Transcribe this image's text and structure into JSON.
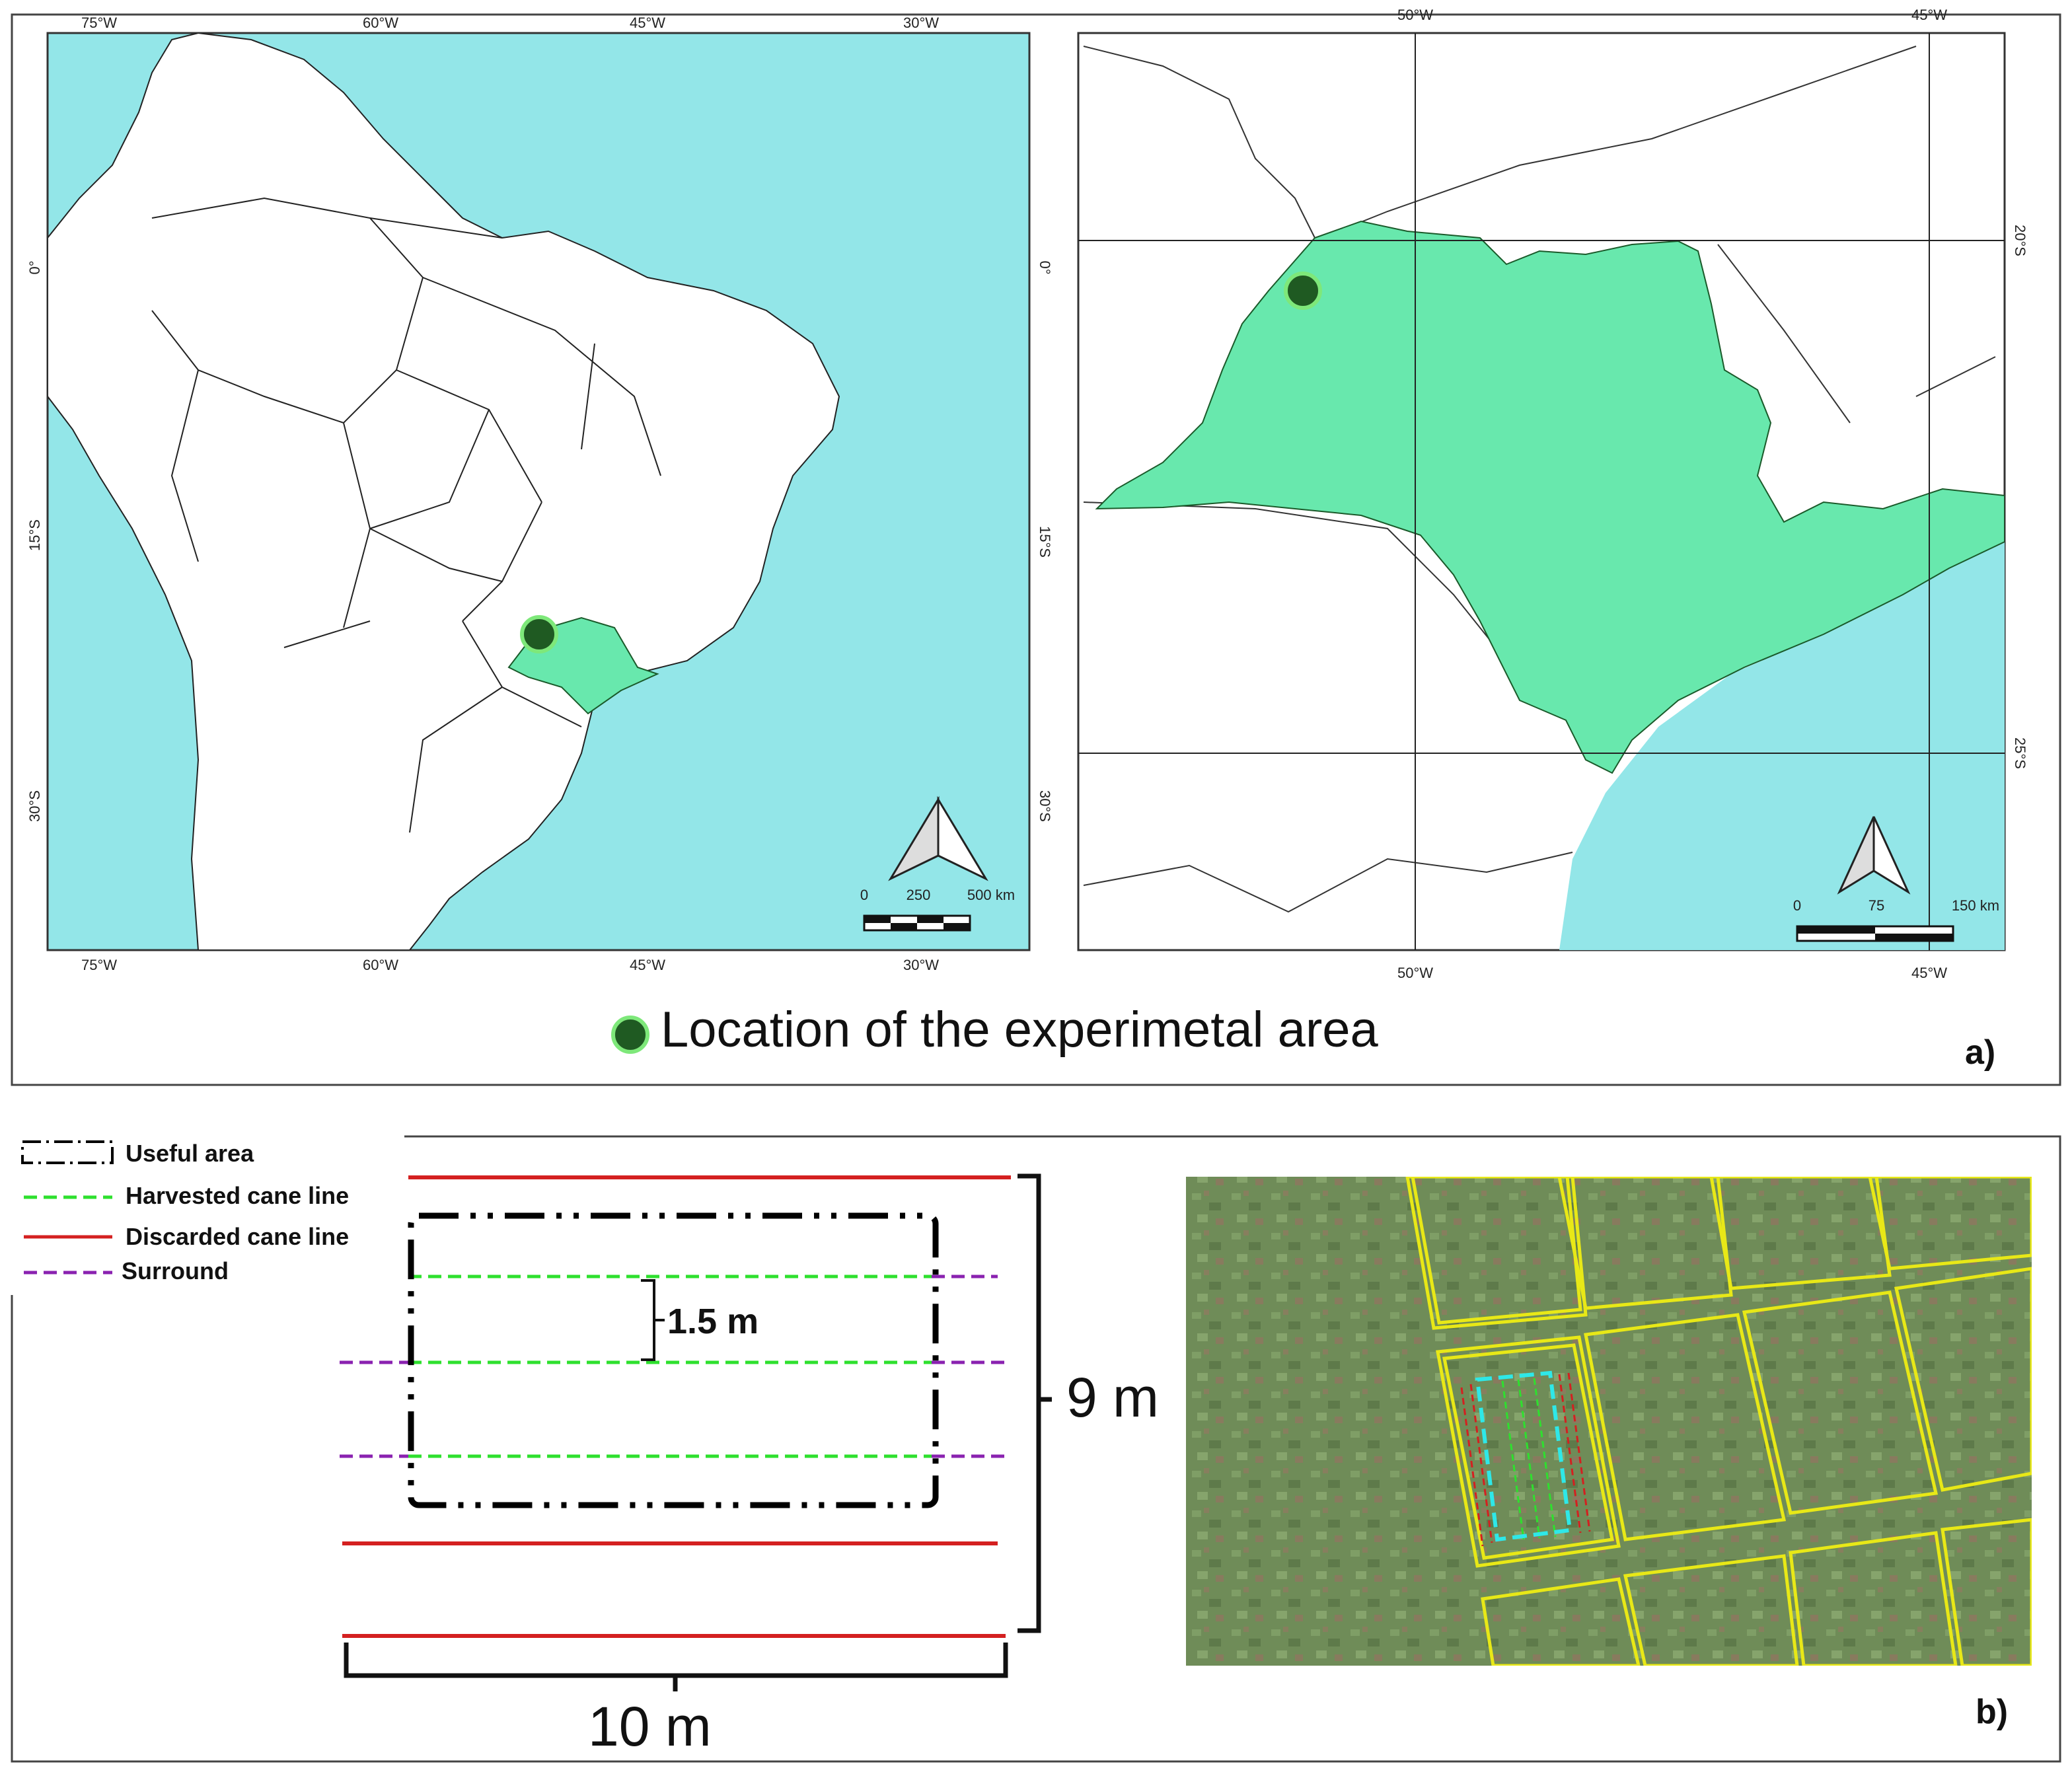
{
  "panel_a": {
    "label": "a)",
    "legend_text": "Location of the experimetal area",
    "colors": {
      "ocean": "#93e6e8",
      "state": "#68e8ad",
      "point_fill": "#1f5a22",
      "point_ring": "#7ee87a"
    },
    "map_left": {
      "top_ticks": [
        "75°W",
        "60°W",
        "45°W",
        "30°W"
      ],
      "bottom_ticks": [
        "75°W",
        "60°W",
        "45°W",
        "30°W"
      ],
      "left_ticks": [
        "0°",
        "15°S",
        "30°S"
      ],
      "scale_labels": [
        "0",
        "250",
        "500 km"
      ]
    },
    "map_right": {
      "top_ticks": [
        "50°W",
        "45°W"
      ],
      "bottom_ticks": [
        "50°W",
        "45°W"
      ],
      "left_ticks": [
        "0°",
        "15°S",
        "30°S"
      ],
      "right_ticks": [
        "20°S",
        "25°S"
      ],
      "scale_labels": [
        "0",
        "75",
        "150 km"
      ]
    }
  },
  "panel_b": {
    "label": "b)",
    "legend": [
      {
        "label": "Useful area",
        "style": "dash-dot",
        "color": "#000000"
      },
      {
        "label": "Harvested cane line",
        "style": "dashed",
        "color": "#2ee02e"
      },
      {
        "label": "Discarded cane line",
        "style": "solid",
        "color": "#d42020"
      },
      {
        "label": "Surround",
        "style": "dashed",
        "color": "#8a22b0"
      }
    ],
    "spacing_label": "1.5 m",
    "height_label": "9 m",
    "width_label": "10 m",
    "photo_colors": {
      "crop": "#6b8a55",
      "plot_outline": "#e8e817",
      "useful_outline": "#2ee8e8"
    }
  }
}
